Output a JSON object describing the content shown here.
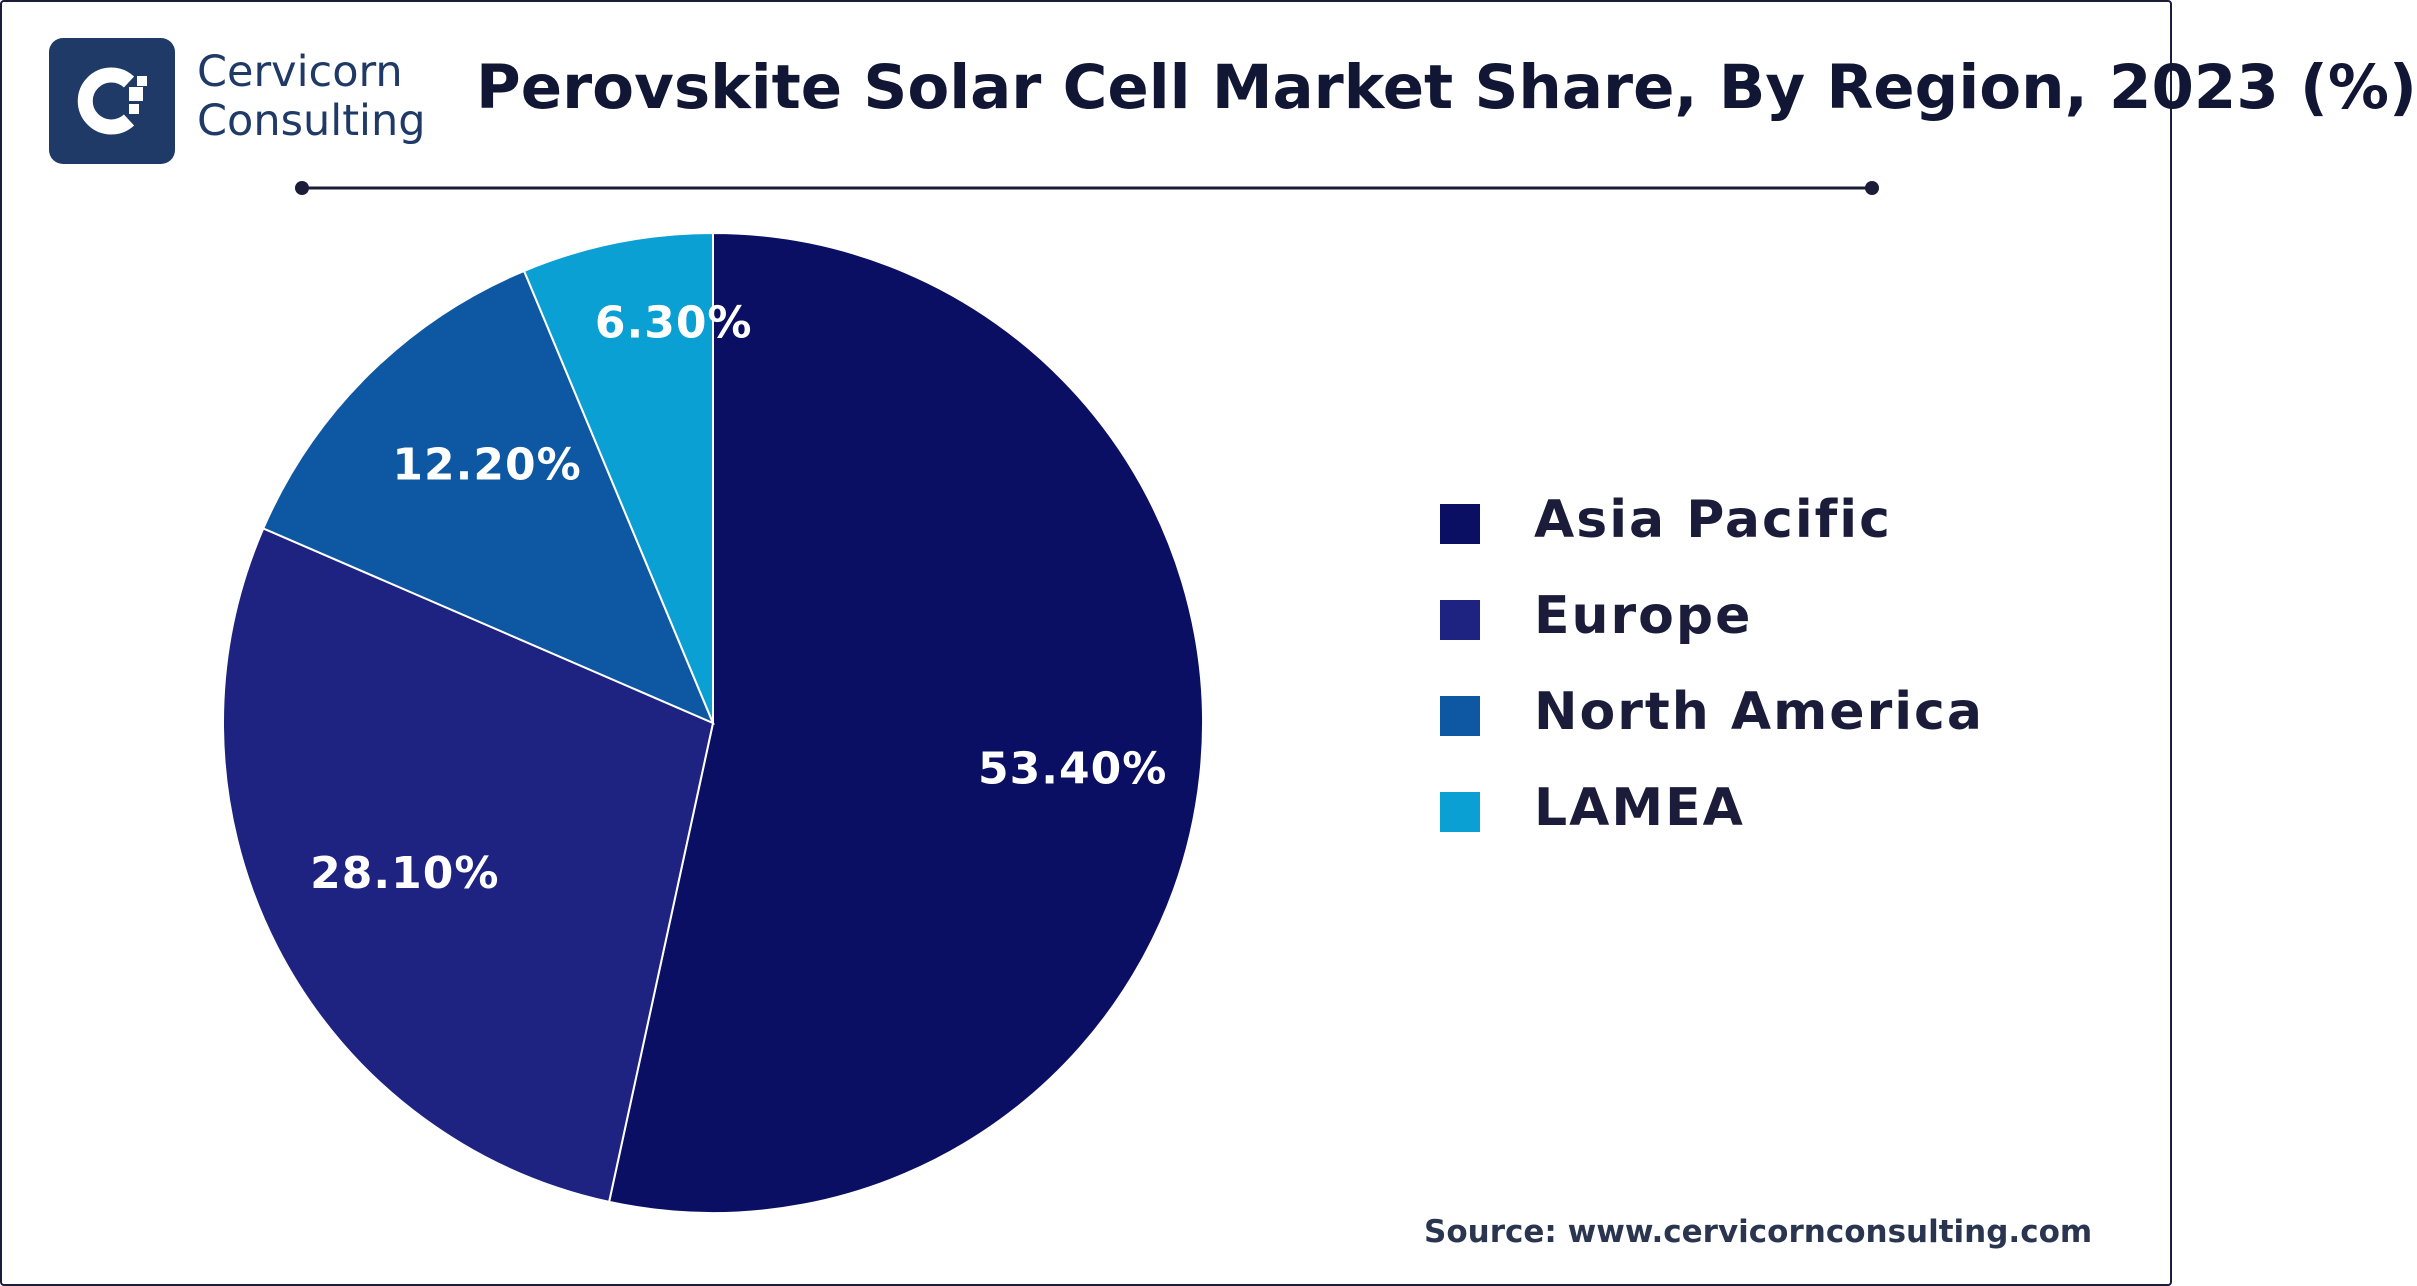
{
  "brand": {
    "line1": "Cervicorn",
    "line2": "Consulting",
    "colors": {
      "badge": "#1f3a66",
      "text": "#1f3a66"
    }
  },
  "title": "Perovskite Solar Cell Market Share, By Region, 2023 (%)",
  "source": "Source: www.cervicornconsulting.com",
  "chart_data": {
    "type": "pie",
    "title": "Perovskite Solar Cell Market Share, By Region, 2023 (%)",
    "categories": [
      "Asia Pacific",
      "Europe",
      "North America",
      "LAMEA"
    ],
    "values": [
      53.4,
      28.1,
      12.2,
      6.3
    ],
    "labels": [
      "53.40%",
      "28.10%",
      "12.20%",
      "6.30%"
    ],
    "colors": [
      "#0b0f63",
      "#1e2281",
      "#0e58a3",
      "#0aa0d4"
    ],
    "start": "12 o'clock",
    "direction": "clockwise",
    "legend": "right"
  }
}
